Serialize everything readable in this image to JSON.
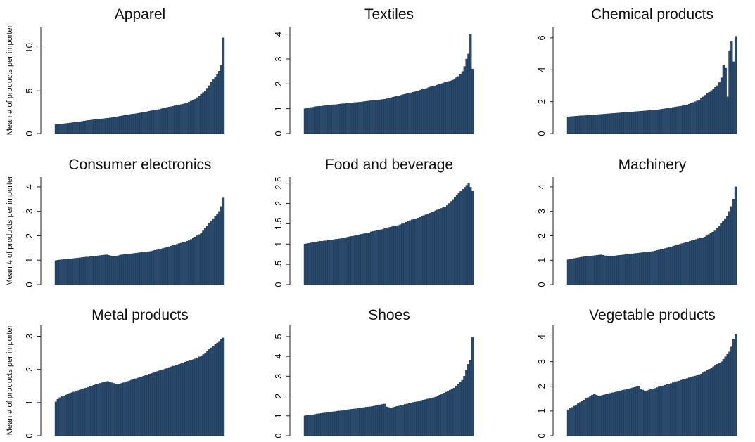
{
  "ylabel": "Mean # of products per importer",
  "bar_color": "#2a4a6c",
  "chart_data": [
    {
      "type": "bar",
      "title": "Apparel",
      "ylim": [
        0,
        12.5
      ],
      "yticks": [
        0,
        5,
        10
      ],
      "values": [
        1.05,
        1.07,
        1.1,
        1.12,
        1.15,
        1.18,
        1.2,
        1.23,
        1.26,
        1.29,
        1.32,
        1.35,
        1.39,
        1.42,
        1.46,
        1.5,
        1.53,
        1.56,
        1.59,
        1.62,
        1.65,
        1.67,
        1.7,
        1.72,
        1.75,
        1.78,
        1.8,
        1.83,
        1.86,
        1.9,
        1.95,
        2.0,
        2.04,
        2.08,
        2.12,
        2.16,
        2.2,
        2.24,
        2.28,
        2.3,
        2.34,
        2.38,
        2.42,
        2.46,
        2.5,
        2.55,
        2.6,
        2.65,
        2.68,
        2.72,
        2.78,
        2.82,
        2.88,
        2.95,
        3.0,
        3.05,
        3.1,
        3.15,
        3.2,
        3.25,
        3.3,
        3.35,
        3.4,
        3.45,
        3.5,
        3.6,
        3.7,
        3.8,
        3.9,
        4.0,
        4.2,
        4.4,
        4.6,
        4.8,
        5.0,
        5.3,
        5.6,
        6.0,
        6.3,
        6.6,
        6.9,
        7.3,
        8.0,
        11.2
      ]
    },
    {
      "type": "bar",
      "title": "Textiles",
      "ylim": [
        0,
        4.3
      ],
      "yticks": [
        0,
        1,
        2,
        3,
        4
      ],
      "values": [
        1.0,
        1.02,
        1.04,
        1.05,
        1.06,
        1.08,
        1.09,
        1.1,
        1.1,
        1.11,
        1.12,
        1.13,
        1.14,
        1.15,
        1.16,
        1.16,
        1.17,
        1.18,
        1.19,
        1.2,
        1.2,
        1.21,
        1.22,
        1.23,
        1.24,
        1.25,
        1.25,
        1.26,
        1.27,
        1.28,
        1.29,
        1.3,
        1.31,
        1.32,
        1.32,
        1.33,
        1.34,
        1.35,
        1.36,
        1.37,
        1.38,
        1.4,
        1.42,
        1.44,
        1.46,
        1.48,
        1.5,
        1.52,
        1.54,
        1.56,
        1.58,
        1.6,
        1.62,
        1.64,
        1.66,
        1.68,
        1.7,
        1.72,
        1.75,
        1.78,
        1.8,
        1.82,
        1.85,
        1.88,
        1.9,
        1.92,
        1.95,
        1.98,
        2.0,
        2.02,
        2.05,
        2.08,
        2.1,
        2.12,
        2.15,
        2.2,
        2.25,
        2.3,
        2.4,
        2.5,
        2.7,
        3.0,
        3.2,
        4.0,
        2.6
      ]
    },
    {
      "type": "bar",
      "title": "Chemical products",
      "ylim": [
        0,
        6.7
      ],
      "yticks": [
        0,
        2,
        4,
        6
      ],
      "values": [
        1.05,
        1.06,
        1.07,
        1.08,
        1.09,
        1.1,
        1.11,
        1.12,
        1.12,
        1.13,
        1.14,
        1.15,
        1.16,
        1.17,
        1.18,
        1.19,
        1.2,
        1.21,
        1.22,
        1.23,
        1.24,
        1.25,
        1.26,
        1.27,
        1.28,
        1.29,
        1.3,
        1.31,
        1.32,
        1.33,
        1.34,
        1.35,
        1.36,
        1.37,
        1.38,
        1.39,
        1.4,
        1.41,
        1.42,
        1.43,
        1.44,
        1.45,
        1.46,
        1.47,
        1.48,
        1.5,
        1.52,
        1.54,
        1.56,
        1.58,
        1.6,
        1.62,
        1.64,
        1.66,
        1.68,
        1.7,
        1.72,
        1.75,
        1.78,
        1.8,
        1.85,
        1.9,
        1.95,
        2.0,
        2.05,
        2.1,
        2.2,
        2.3,
        2.4,
        2.5,
        2.6,
        2.7,
        2.8,
        2.9,
        3.0,
        3.2,
        3.5,
        4.3,
        4.1,
        2.3,
        5.2,
        5.8,
        4.5,
        6.1
      ]
    },
    {
      "type": "bar",
      "title": "Consumer electronics",
      "ylim": [
        0,
        4.4
      ],
      "yticks": [
        0,
        1,
        2,
        3,
        4
      ],
      "values": [
        0.98,
        1.0,
        1.01,
        1.02,
        1.03,
        1.04,
        1.05,
        1.06,
        1.06,
        1.07,
        1.08,
        1.09,
        1.1,
        1.11,
        1.12,
        1.13,
        1.13,
        1.14,
        1.15,
        1.16,
        1.17,
        1.18,
        1.19,
        1.2,
        1.21,
        1.22,
        1.2,
        1.18,
        1.16,
        1.15,
        1.17,
        1.19,
        1.21,
        1.22,
        1.23,
        1.24,
        1.25,
        1.26,
        1.27,
        1.28,
        1.29,
        1.3,
        1.31,
        1.32,
        1.33,
        1.34,
        1.35,
        1.36,
        1.38,
        1.4,
        1.42,
        1.44,
        1.46,
        1.48,
        1.5,
        1.52,
        1.55,
        1.58,
        1.6,
        1.62,
        1.65,
        1.68,
        1.7,
        1.72,
        1.75,
        1.78,
        1.8,
        1.85,
        1.9,
        1.95,
        2.0,
        2.05,
        2.1,
        2.2,
        2.3,
        2.4,
        2.5,
        2.6,
        2.7,
        2.8,
        2.9,
        3.0,
        3.2,
        3.55
      ]
    },
    {
      "type": "bar",
      "title": "Food and beverage",
      "ylim": [
        0,
        2.65
      ],
      "yticks": [
        0,
        0.5,
        1,
        1.5,
        2,
        2.5
      ],
      "ytick_labels": [
        "0",
        ".5",
        "1",
        "1.5",
        "2",
        "2.5"
      ],
      "values": [
        1.0,
        1.01,
        1.02,
        1.03,
        1.04,
        1.04,
        1.05,
        1.06,
        1.07,
        1.07,
        1.08,
        1.08,
        1.09,
        1.1,
        1.1,
        1.11,
        1.12,
        1.12,
        1.13,
        1.14,
        1.15,
        1.16,
        1.17,
        1.18,
        1.19,
        1.2,
        1.21,
        1.22,
        1.23,
        1.24,
        1.25,
        1.26,
        1.27,
        1.28,
        1.3,
        1.31,
        1.32,
        1.33,
        1.34,
        1.35,
        1.36,
        1.38,
        1.4,
        1.41,
        1.42,
        1.43,
        1.44,
        1.45,
        1.46,
        1.48,
        1.5,
        1.52,
        1.54,
        1.56,
        1.58,
        1.6,
        1.61,
        1.62,
        1.64,
        1.66,
        1.68,
        1.7,
        1.72,
        1.74,
        1.76,
        1.78,
        1.8,
        1.82,
        1.84,
        1.86,
        1.88,
        1.9,
        1.92,
        1.95,
        2.0,
        2.05,
        2.1,
        2.15,
        2.2,
        2.25,
        2.3,
        2.35,
        2.4,
        2.45,
        2.5,
        2.4,
        2.3
      ]
    },
    {
      "type": "bar",
      "title": "Machinery",
      "ylim": [
        0,
        4.4
      ],
      "yticks": [
        0,
        1,
        2,
        3,
        4
      ],
      "values": [
        1.02,
        1.04,
        1.05,
        1.07,
        1.09,
        1.1,
        1.12,
        1.13,
        1.14,
        1.15,
        1.16,
        1.17,
        1.18,
        1.19,
        1.2,
        1.21,
        1.22,
        1.2,
        1.18,
        1.16,
        1.15,
        1.16,
        1.17,
        1.18,
        1.19,
        1.2,
        1.21,
        1.22,
        1.23,
        1.24,
        1.25,
        1.26,
        1.27,
        1.28,
        1.29,
        1.3,
        1.31,
        1.32,
        1.33,
        1.34,
        1.35,
        1.36,
        1.38,
        1.4,
        1.42,
        1.44,
        1.46,
        1.48,
        1.5,
        1.52,
        1.55,
        1.58,
        1.6,
        1.62,
        1.65,
        1.68,
        1.7,
        1.72,
        1.75,
        1.78,
        1.8,
        1.82,
        1.85,
        1.88,
        1.9,
        1.92,
        1.95,
        2.0,
        2.05,
        2.1,
        2.15,
        2.2,
        2.3,
        2.4,
        2.5,
        2.6,
        2.7,
        2.8,
        3.0,
        3.2,
        3.5,
        4.0
      ]
    },
    {
      "type": "bar",
      "title": "Metal products",
      "ylim": [
        0,
        3.35
      ],
      "yticks": [
        0,
        1,
        2,
        3
      ],
      "values": [
        1.02,
        1.1,
        1.15,
        1.18,
        1.2,
        1.23,
        1.25,
        1.28,
        1.3,
        1.32,
        1.34,
        1.36,
        1.38,
        1.4,
        1.42,
        1.44,
        1.46,
        1.48,
        1.5,
        1.52,
        1.54,
        1.56,
        1.58,
        1.6,
        1.62,
        1.63,
        1.64,
        1.62,
        1.6,
        1.58,
        1.56,
        1.55,
        1.56,
        1.58,
        1.6,
        1.62,
        1.64,
        1.66,
        1.68,
        1.7,
        1.72,
        1.74,
        1.76,
        1.78,
        1.8,
        1.82,
        1.84,
        1.86,
        1.88,
        1.9,
        1.92,
        1.94,
        1.96,
        1.98,
        2.0,
        2.02,
        2.04,
        2.06,
        2.08,
        2.1,
        2.12,
        2.14,
        2.16,
        2.18,
        2.2,
        2.22,
        2.24,
        2.26,
        2.28,
        2.3,
        2.32,
        2.35,
        2.38,
        2.4,
        2.45,
        2.5,
        2.55,
        2.6,
        2.65,
        2.7,
        2.75,
        2.8,
        2.85,
        2.9,
        2.95
      ]
    },
    {
      "type": "bar",
      "title": "Shoes",
      "ylim": [
        0,
        5.6
      ],
      "yticks": [
        0,
        1,
        2,
        3,
        4,
        5
      ],
      "values": [
        1.0,
        1.02,
        1.04,
        1.05,
        1.06,
        1.08,
        1.1,
        1.11,
        1.12,
        1.14,
        1.15,
        1.16,
        1.18,
        1.2,
        1.21,
        1.22,
        1.24,
        1.25,
        1.26,
        1.28,
        1.3,
        1.31,
        1.32,
        1.34,
        1.35,
        1.36,
        1.38,
        1.4,
        1.41,
        1.42,
        1.44,
        1.45,
        1.46,
        1.48,
        1.5,
        1.52,
        1.54,
        1.56,
        1.58,
        1.6,
        1.45,
        1.42,
        1.4,
        1.42,
        1.45,
        1.48,
        1.5,
        1.52,
        1.55,
        1.58,
        1.6,
        1.62,
        1.65,
        1.68,
        1.7,
        1.72,
        1.75,
        1.78,
        1.8,
        1.82,
        1.85,
        1.88,
        1.9,
        1.92,
        1.95,
        2.0,
        2.05,
        2.1,
        2.15,
        2.2,
        2.25,
        2.3,
        2.35,
        2.4,
        2.5,
        2.6,
        2.7,
        2.8,
        3.0,
        3.3,
        3.6,
        3.8,
        4.95
      ]
    },
    {
      "type": "bar",
      "title": "Vegetable products",
      "ylim": [
        0,
        4.5
      ],
      "yticks": [
        0,
        1,
        2,
        3,
        4
      ],
      "values": [
        1.05,
        1.1,
        1.15,
        1.2,
        1.25,
        1.3,
        1.35,
        1.4,
        1.45,
        1.5,
        1.55,
        1.6,
        1.65,
        1.7,
        1.65,
        1.6,
        1.62,
        1.64,
        1.66,
        1.68,
        1.7,
        1.72,
        1.74,
        1.76,
        1.78,
        1.8,
        1.82,
        1.84,
        1.86,
        1.88,
        1.9,
        1.92,
        1.94,
        1.96,
        1.98,
        2.0,
        1.9,
        1.85,
        1.8,
        1.82,
        1.85,
        1.88,
        1.9,
        1.92,
        1.95,
        1.98,
        2.0,
        2.02,
        2.05,
        2.08,
        2.1,
        2.12,
        2.15,
        2.18,
        2.2,
        2.22,
        2.25,
        2.28,
        2.3,
        2.32,
        2.35,
        2.38,
        2.4,
        2.42,
        2.45,
        2.48,
        2.5,
        2.55,
        2.6,
        2.65,
        2.7,
        2.75,
        2.8,
        2.85,
        2.9,
        2.95,
        3.0,
        3.1,
        3.2,
        3.3,
        3.4,
        3.6,
        3.9,
        4.1
      ]
    }
  ]
}
